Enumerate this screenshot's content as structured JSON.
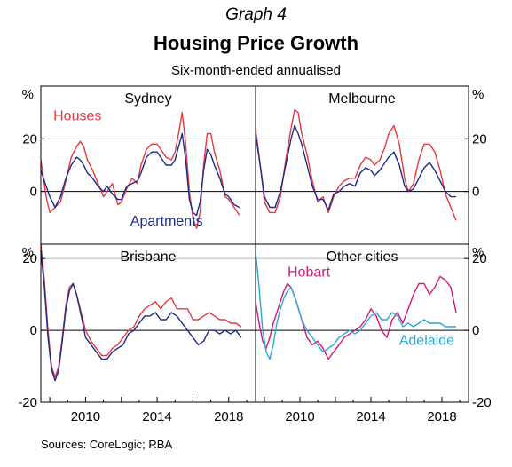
{
  "header": {
    "graph_number": "Graph 4",
    "title": "Housing Price Growth",
    "subtitle": "Six-month-ended annualised"
  },
  "footer": {
    "source": "Sources:  CoreLogic; RBA"
  },
  "colors": {
    "houses": "#e8383d",
    "apartments": "#1a2a8c",
    "hobart": "#d4187a",
    "adelaide": "#29a9d8",
    "gridline": "#b5b5b5"
  },
  "axes": {
    "y_unit": "%",
    "top_y_ticks": [
      0,
      20
    ],
    "bottom_y_ticks": [
      -20,
      0,
      20
    ],
    "top_ylim": [
      -20,
      40
    ],
    "bottom_ylim": [
      -20,
      24
    ],
    "x_ticks": [
      2010,
      2014,
      2018
    ],
    "xlim": [
      2007.5,
      2019.5
    ]
  },
  "chart_data": [
    {
      "type": "line",
      "panel": "Sydney",
      "title": "Sydney",
      "series": [
        {
          "name": "Houses",
          "label_color": "#e8383d",
          "color": "#e8383d",
          "x": [
            2007.5,
            2007.8,
            2008.0,
            2008.3,
            2008.6,
            2008.9,
            2009.2,
            2009.5,
            2009.7,
            2009.9,
            2010.1,
            2010.4,
            2010.7,
            2011.0,
            2011.2,
            2011.5,
            2011.8,
            2012.0,
            2012.3,
            2012.6,
            2012.9,
            2013.1,
            2013.4,
            2013.7,
            2014.0,
            2014.2,
            2014.5,
            2014.8,
            2015.0,
            2015.2,
            2015.4,
            2015.6,
            2015.8,
            2016.0,
            2016.2,
            2016.4,
            2016.6,
            2016.8,
            2017.0,
            2017.2,
            2017.5,
            2017.8,
            2018.0,
            2018.3,
            2018.6
          ],
          "y": [
            12,
            -2,
            -8,
            -6,
            -4,
            4,
            13,
            17,
            19,
            17,
            12,
            8,
            3,
            -2,
            0,
            3,
            -5,
            -4,
            1,
            5,
            3,
            10,
            16,
            18,
            18,
            16,
            13,
            12,
            15,
            22,
            30,
            18,
            0,
            -10,
            -14,
            -8,
            10,
            22,
            22,
            15,
            8,
            -2,
            -3,
            -6,
            -9
          ]
        },
        {
          "name": "Apartments",
          "label_color": "#1a2a8c",
          "color": "#1a2a8c",
          "x": [
            2007.5,
            2007.8,
            2008.0,
            2008.3,
            2008.6,
            2008.9,
            2009.2,
            2009.5,
            2009.7,
            2009.9,
            2010.1,
            2010.4,
            2010.7,
            2011.0,
            2011.2,
            2011.5,
            2011.8,
            2012.0,
            2012.3,
            2012.6,
            2012.9,
            2013.1,
            2013.4,
            2013.7,
            2014.0,
            2014.2,
            2014.5,
            2014.8,
            2015.0,
            2015.2,
            2015.4,
            2015.6,
            2015.8,
            2016.0,
            2016.2,
            2016.4,
            2016.6,
            2016.8,
            2017.0,
            2017.2,
            2017.5,
            2017.8,
            2018.0,
            2018.3,
            2018.6
          ],
          "y": [
            8,
            2,
            -2,
            -6,
            -2,
            5,
            10,
            13,
            12,
            10,
            7,
            5,
            2,
            0,
            2,
            -1,
            -3,
            -3,
            2,
            3,
            4,
            7,
            13,
            15,
            15,
            13,
            10,
            10,
            12,
            17,
            22,
            12,
            -3,
            -8,
            -9,
            -4,
            8,
            16,
            14,
            10,
            5,
            -1,
            -2,
            -5,
            -6
          ]
        }
      ]
    },
    {
      "type": "line",
      "panel": "Melbourne",
      "title": "Melbourne",
      "series": [
        {
          "name": "Houses",
          "color": "#e8383d",
          "x": [
            2007.5,
            2007.8,
            2008.0,
            2008.3,
            2008.6,
            2008.9,
            2009.2,
            2009.5,
            2009.7,
            2009.9,
            2010.1,
            2010.4,
            2010.7,
            2011.0,
            2011.3,
            2011.6,
            2011.9,
            2012.2,
            2012.5,
            2012.8,
            2013.1,
            2013.4,
            2013.7,
            2014.0,
            2014.2,
            2014.5,
            2014.8,
            2015.0,
            2015.3,
            2015.6,
            2015.9,
            2016.1,
            2016.4,
            2016.7,
            2017.0,
            2017.3,
            2017.6,
            2017.9,
            2018.2,
            2018.5,
            2018.8
          ],
          "y": [
            24,
            8,
            -4,
            -8,
            -8,
            -2,
            12,
            24,
            31,
            30,
            22,
            14,
            4,
            -4,
            -2,
            -8,
            -2,
            2,
            4,
            5,
            5,
            10,
            13,
            12,
            10,
            12,
            17,
            22,
            25,
            18,
            5,
            0,
            3,
            12,
            18,
            18,
            15,
            8,
            -1,
            -6,
            -11
          ]
        },
        {
          "name": "Apartments",
          "color": "#1a2a8c",
          "x": [
            2007.5,
            2007.8,
            2008.0,
            2008.3,
            2008.6,
            2008.9,
            2009.2,
            2009.5,
            2009.7,
            2009.9,
            2010.1,
            2010.4,
            2010.7,
            2011.0,
            2011.3,
            2011.6,
            2011.9,
            2012.2,
            2012.5,
            2012.8,
            2013.1,
            2013.4,
            2013.7,
            2014.0,
            2014.2,
            2014.5,
            2014.8,
            2015.0,
            2015.3,
            2015.6,
            2015.9,
            2016.1,
            2016.4,
            2016.7,
            2017.0,
            2017.3,
            2017.6,
            2017.9,
            2018.2,
            2018.5,
            2018.8
          ],
          "y": [
            22,
            8,
            -2,
            -6,
            -6,
            0,
            10,
            20,
            25,
            22,
            18,
            10,
            2,
            -3,
            -3,
            -7,
            -1,
            0,
            2,
            3,
            2,
            7,
            9,
            8,
            6,
            8,
            11,
            13,
            15,
            10,
            2,
            0,
            1,
            5,
            9,
            11,
            8,
            4,
            0,
            -2,
            -2
          ]
        }
      ]
    },
    {
      "type": "line",
      "panel": "Brisbane",
      "title": "Brisbane",
      "series": [
        {
          "name": "Houses",
          "color": "#e8383d",
          "x": [
            2007.5,
            2007.7,
            2007.9,
            2008.1,
            2008.3,
            2008.5,
            2008.7,
            2008.9,
            2009.1,
            2009.3,
            2009.5,
            2009.8,
            2010.0,
            2010.3,
            2010.6,
            2010.9,
            2011.2,
            2011.5,
            2011.8,
            2012.1,
            2012.4,
            2012.7,
            2013.0,
            2013.3,
            2013.6,
            2013.9,
            2014.2,
            2014.5,
            2014.8,
            2015.1,
            2015.4,
            2015.7,
            2016.0,
            2016.3,
            2016.6,
            2016.9,
            2017.2,
            2017.5,
            2017.8,
            2018.1,
            2018.4,
            2018.7
          ],
          "y": [
            24,
            14,
            0,
            -10,
            -13,
            -10,
            -2,
            7,
            12,
            13,
            10,
            4,
            0,
            -3,
            -5,
            -7,
            -7,
            -5,
            -4,
            -2,
            0,
            1,
            4,
            6,
            7,
            8,
            6,
            8,
            9,
            6,
            6,
            6,
            3,
            3,
            4,
            5,
            4,
            3,
            3,
            2,
            2,
            1
          ]
        },
        {
          "name": "Apartments",
          "color": "#1a2a8c",
          "x": [
            2007.5,
            2007.7,
            2007.9,
            2008.1,
            2008.3,
            2008.5,
            2008.7,
            2008.9,
            2009.1,
            2009.3,
            2009.5,
            2009.8,
            2010.0,
            2010.3,
            2010.6,
            2010.9,
            2011.2,
            2011.5,
            2011.8,
            2012.1,
            2012.4,
            2012.7,
            2013.0,
            2013.3,
            2013.6,
            2013.9,
            2014.2,
            2014.5,
            2014.8,
            2015.1,
            2015.4,
            2015.7,
            2016.0,
            2016.3,
            2016.6,
            2016.9,
            2017.2,
            2017.5,
            2017.8,
            2018.1,
            2018.4,
            2018.7
          ],
          "y": [
            22,
            12,
            -2,
            -11,
            -14,
            -11,
            -3,
            6,
            11,
            13,
            10,
            3,
            -2,
            -4,
            -6,
            -8,
            -8,
            -6,
            -5,
            -4,
            -1,
            0,
            2,
            4,
            4,
            5,
            3,
            3,
            5,
            4,
            2,
            0,
            -2,
            -4,
            -3,
            0,
            0,
            -1,
            0,
            -1,
            0,
            -2
          ]
        }
      ]
    },
    {
      "type": "line",
      "panel": "Other cities",
      "title": "Other cities",
      "series": [
        {
          "name": "Hobart",
          "label_color": "#d4187a",
          "color": "#d4187a",
          "x": [
            2007.5,
            2007.7,
            2007.9,
            2008.1,
            2008.3,
            2008.5,
            2008.7,
            2008.9,
            2009.1,
            2009.3,
            2009.5,
            2009.8,
            2010.1,
            2010.4,
            2010.7,
            2011.0,
            2011.3,
            2011.6,
            2011.9,
            2012.2,
            2012.5,
            2012.8,
            2013.1,
            2013.4,
            2013.7,
            2014.0,
            2014.3,
            2014.6,
            2014.9,
            2015.2,
            2015.5,
            2015.8,
            2016.1,
            2016.4,
            2016.7,
            2017.0,
            2017.3,
            2017.6,
            2017.9,
            2018.2,
            2018.5,
            2018.8
          ],
          "y": [
            8,
            2,
            -3,
            -5,
            -2,
            2,
            5,
            8,
            11,
            13,
            12,
            8,
            3,
            -2,
            -4,
            -3,
            -5,
            -8,
            -6,
            -4,
            -2,
            -1,
            0,
            1,
            3,
            6,
            4,
            0,
            -2,
            3,
            5,
            2,
            6,
            10,
            13,
            13,
            10,
            12,
            15,
            14,
            12,
            5
          ]
        },
        {
          "name": "Adelaide",
          "label_color": "#29a9d8",
          "color": "#29a9d8",
          "x": [
            2007.5,
            2007.7,
            2007.9,
            2008.1,
            2008.3,
            2008.5,
            2008.7,
            2008.9,
            2009.1,
            2009.3,
            2009.5,
            2009.8,
            2010.1,
            2010.4,
            2010.7,
            2011.0,
            2011.3,
            2011.6,
            2011.9,
            2012.2,
            2012.5,
            2012.8,
            2013.1,
            2013.4,
            2013.7,
            2014.0,
            2014.3,
            2014.6,
            2014.9,
            2015.2,
            2015.5,
            2015.8,
            2016.1,
            2016.4,
            2016.7,
            2017.0,
            2017.3,
            2017.6,
            2017.9,
            2018.2,
            2018.5,
            2018.8
          ],
          "y": [
            22,
            12,
            0,
            -6,
            -8,
            -4,
            2,
            6,
            9,
            11,
            12,
            8,
            3,
            0,
            -2,
            -4,
            -6,
            -5,
            -4,
            -2,
            -1,
            0,
            -1,
            0,
            2,
            4,
            5,
            3,
            3,
            5,
            4,
            1,
            2,
            1,
            2,
            3,
            2,
            2,
            2,
            1,
            1,
            1
          ]
        }
      ]
    }
  ]
}
